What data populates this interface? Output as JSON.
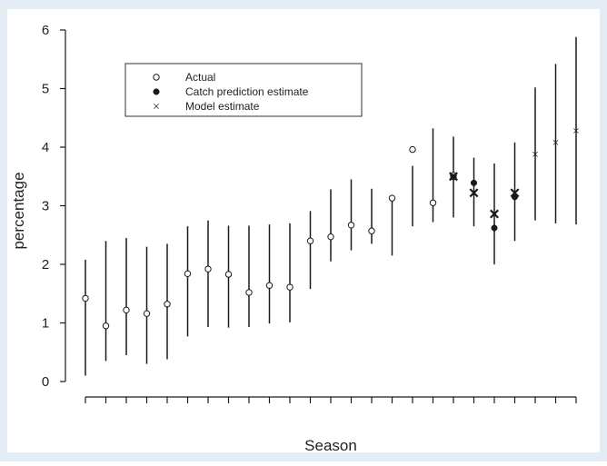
{
  "chart_data": {
    "type": "scatter",
    "xlabel": "Season",
    "ylabel": "percentage",
    "ylim": [
      0,
      6
    ],
    "yticks": [
      0,
      1,
      2,
      3,
      4,
      5,
      6
    ],
    "n_seasons": 25,
    "legend": {
      "placement": "top-left",
      "entries": [
        {
          "label": "Actual",
          "marker": "open-circle"
        },
        {
          "label": "Catch prediction estimate",
          "marker": "filled-circle"
        },
        {
          "label": "Model estimate",
          "marker": "cross"
        }
      ]
    },
    "intervals": [
      {
        "season": 1,
        "low": 0.1,
        "high": 2.08
      },
      {
        "season": 2,
        "low": 0.35,
        "high": 2.4
      },
      {
        "season": 3,
        "low": 0.45,
        "high": 2.45
      },
      {
        "season": 4,
        "low": 0.3,
        "high": 2.3
      },
      {
        "season": 5,
        "low": 0.38,
        "high": 2.35
      },
      {
        "season": 6,
        "low": 0.77,
        "high": 2.65
      },
      {
        "season": 7,
        "low": 0.93,
        "high": 2.75
      },
      {
        "season": 8,
        "low": 0.92,
        "high": 2.66
      },
      {
        "season": 9,
        "low": 0.93,
        "high": 2.66
      },
      {
        "season": 10,
        "low": 0.99,
        "high": 2.68
      },
      {
        "season": 11,
        "low": 1.01,
        "high": 2.7
      },
      {
        "season": 12,
        "low": 1.58,
        "high": 2.91
      },
      {
        "season": 13,
        "low": 2.05,
        "high": 3.28
      },
      {
        "season": 14,
        "low": 2.24,
        "high": 3.45
      },
      {
        "season": 15,
        "low": 2.35,
        "high": 3.29
      },
      {
        "season": 16,
        "low": 2.15,
        "high": 3.14
      },
      {
        "season": 17,
        "low": 2.65,
        "high": 3.68
      },
      {
        "season": 18,
        "low": 2.72,
        "high": 4.32
      },
      {
        "season": 19,
        "low": 2.8,
        "high": 4.18
      },
      {
        "season": 20,
        "low": 2.65,
        "high": 3.82
      },
      {
        "season": 21,
        "low": 2.0,
        "high": 3.72
      },
      {
        "season": 22,
        "low": 2.4,
        "high": 4.08
      },
      {
        "season": 23,
        "low": 2.75,
        "high": 5.02
      },
      {
        "season": 24,
        "low": 2.7,
        "high": 5.42
      },
      {
        "season": 25,
        "low": 2.68,
        "high": 5.88
      }
    ],
    "actual": [
      {
        "season": 1,
        "value": 1.42
      },
      {
        "season": 2,
        "value": 0.95
      },
      {
        "season": 3,
        "value": 1.22
      },
      {
        "season": 4,
        "value": 1.16
      },
      {
        "season": 5,
        "value": 1.32
      },
      {
        "season": 6,
        "value": 1.84
      },
      {
        "season": 7,
        "value": 1.92
      },
      {
        "season": 8,
        "value": 1.83
      },
      {
        "season": 9,
        "value": 1.52
      },
      {
        "season": 10,
        "value": 1.64
      },
      {
        "season": 11,
        "value": 1.61
      },
      {
        "season": 12,
        "value": 2.4
      },
      {
        "season": 13,
        "value": 2.47
      },
      {
        "season": 14,
        "value": 2.67
      },
      {
        "season": 15,
        "value": 2.57
      },
      {
        "season": 16,
        "value": 3.13
      },
      {
        "season": 17,
        "value": 3.96
      },
      {
        "season": 18,
        "value": 3.05
      },
      {
        "season": 19,
        "value": 3.52
      }
    ],
    "catch_prediction": [
      {
        "season": 19,
        "value": 3.49
      },
      {
        "season": 20,
        "value": 3.39
      },
      {
        "season": 21,
        "value": 2.62
      },
      {
        "season": 22,
        "value": 3.15
      }
    ],
    "model_estimate": [
      {
        "season": 19,
        "value": 3.5,
        "bold": true
      },
      {
        "season": 20,
        "value": 3.22,
        "bold": true
      },
      {
        "season": 21,
        "value": 2.86,
        "bold": true
      },
      {
        "season": 22,
        "value": 3.22,
        "bold": true
      },
      {
        "season": 23,
        "value": 3.88,
        "bold": false
      },
      {
        "season": 24,
        "value": 4.08,
        "bold": false
      },
      {
        "season": 25,
        "value": 4.28,
        "bold": false
      }
    ]
  },
  "style": {
    "panel_color": "#e4ecf6",
    "plot_bg": "#ffffff",
    "ink": "#1a1a1a"
  }
}
